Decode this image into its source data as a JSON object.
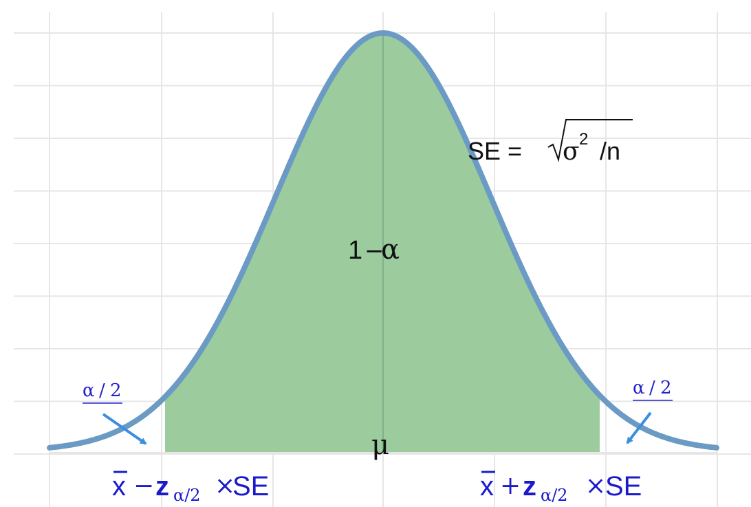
{
  "diagram": {
    "se_formula": {
      "prefix": "SE = ",
      "sigma": "σ",
      "exp": "2",
      "slash_n": " /n"
    },
    "confidence_label": {
      "one": "1",
      "minus": "−",
      "alpha": "α"
    },
    "mean_label": "μ",
    "tail_left": {
      "numerator": "α",
      "slash": "/",
      "denominator": "2"
    },
    "tail_right": {
      "numerator": "α",
      "slash": "/",
      "denominator": "2"
    },
    "lower_bound": {
      "xbar": "x",
      "op": "−",
      "z": "z",
      "sub": "α/2",
      "times": "×",
      "se": "SE"
    },
    "upper_bound": {
      "xbar": "x",
      "op": "+",
      "z": "z",
      "sub": "α/2",
      "times": "×",
      "se": "SE"
    },
    "colors": {
      "curve": "#6b9ac4",
      "fill": "#9ccb9e",
      "grid": "#e6e6e6",
      "arrow": "#3a8fe0",
      "label_blue": "#1a1acc"
    }
  }
}
